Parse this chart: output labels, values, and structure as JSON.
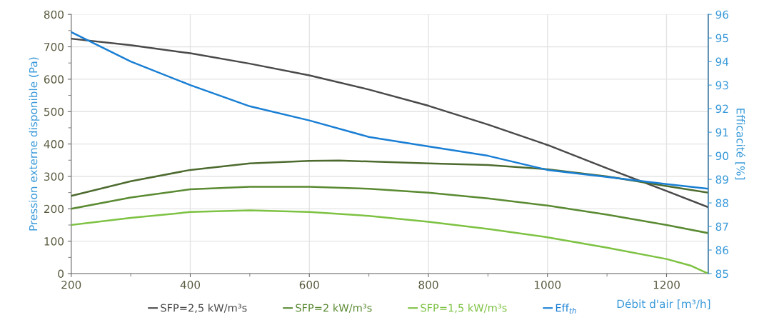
{
  "chart_data": {
    "type": "line",
    "xlabel": "Débit d'air [m³/h]",
    "ylabel": "Pression externe disponible (Pa)",
    "y2label": "Efficacité [%]",
    "xlim": [
      200,
      1270
    ],
    "xticks": [
      200,
      {
        "value": 300,
        "label": null
      },
      400,
      {
        "value": 500,
        "label": null
      },
      600,
      {
        "value": 700,
        "label": null
      },
      800,
      {
        "value": 900,
        "label": null
      },
      1000,
      {
        "value": 1100,
        "label": null
      },
      1200
    ],
    "ylim": [
      0,
      800
    ],
    "yticks": [
      0,
      {
        "value": 50,
        "label": null
      },
      100,
      {
        "value": 150,
        "label": null
      },
      200,
      {
        "value": 250,
        "label": null
      },
      300,
      {
        "value": 350,
        "label": null
      },
      400,
      {
        "value": 450,
        "label": null
      },
      500,
      {
        "value": 550,
        "label": null
      },
      600,
      {
        "value": 650,
        "label": null
      },
      700,
      {
        "value": 750,
        "label": null
      },
      800
    ],
    "y2lim": [
      85,
      96
    ],
    "y2ticks": [
      85,
      86,
      87,
      88,
      89,
      90,
      91,
      92,
      93,
      94,
      95,
      96
    ],
    "grid": true,
    "legend": "bottom",
    "marker": "none",
    "line_style": "solid",
    "series": [
      {
        "name": "SFP=2,5 kW/m³s",
        "color": "#4a4a4a",
        "x": [
          200,
          300,
          400,
          500,
          600,
          700,
          800,
          900,
          1000,
          1100,
          1200,
          1270
        ],
        "values": [
          725,
          705,
          680,
          648,
          612,
          568,
          518,
          460,
          397,
          325,
          255,
          205
        ]
      },
      {
        "color": "#4d6b2f",
        "x": [
          200,
          300,
          400,
          500,
          600,
          650,
          700,
          800,
          900,
          1000,
          1100,
          1200,
          1270
        ],
        "values": [
          240,
          285,
          320,
          340,
          348,
          349,
          346,
          340,
          335,
          322,
          300,
          270,
          250
        ]
      },
      {
        "name": "SFP=2 kW/m³s",
        "color": "#5a8a32",
        "x": [
          200,
          300,
          400,
          500,
          600,
          700,
          800,
          900,
          1000,
          1100,
          1200,
          1270
        ],
        "values": [
          200,
          235,
          260,
          268,
          268,
          262,
          250,
          232,
          210,
          182,
          150,
          125
        ]
      },
      {
        "name": "SFP=1,5 kW/m³s",
        "color": "#7dc242",
        "x": [
          200,
          300,
          400,
          500,
          600,
          700,
          800,
          900,
          1000,
          1100,
          1200,
          1240,
          1270
        ],
        "values": [
          150,
          172,
          190,
          195,
          190,
          178,
          160,
          138,
          112,
          80,
          45,
          25,
          0
        ]
      },
      {
        "name": "Eff$_{th}$",
        "color": "#1a7fd4",
        "axis": "y2",
        "x": [
          200,
          300,
          400,
          500,
          600,
          700,
          800,
          900,
          1000,
          1100,
          1200,
          1270
        ],
        "values": [
          95.25,
          94.0,
          93.0,
          92.1,
          91.5,
          90.8,
          90.4,
          90.0,
          89.4,
          89.1,
          88.8,
          88.6
        ]
      }
    ]
  }
}
